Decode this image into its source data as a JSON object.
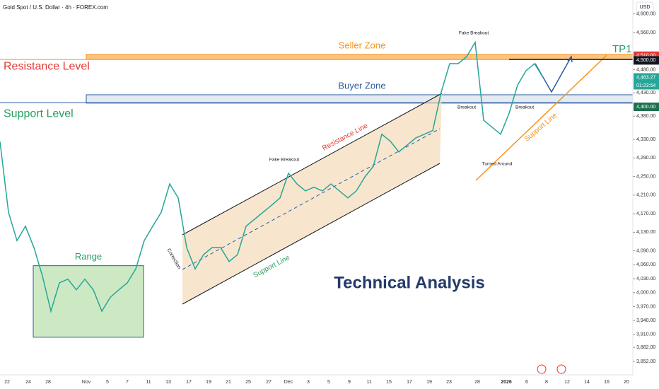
{
  "header": {
    "symbol": "Gold Spot / U.S. Dollar · 4h · FOREX.com",
    "currency": "USD"
  },
  "chart_data": {
    "type": "line",
    "series": [
      {
        "color": "#26a69a",
        "values": [
          4325,
          4173,
          4112,
          4143,
          4097,
          4036,
          3960,
          4021,
          4029,
          4006,
          4029,
          4006,
          3960,
          3990,
          4006,
          4021,
          4051,
          4112,
          4143,
          4173,
          4234,
          4204,
          4097,
          4051,
          4082,
          4097,
          4097,
          4067,
          4082,
          4143,
          4158,
          4173,
          4188,
          4204,
          4257,
          4234,
          4219,
          4227,
          4219,
          4234,
          4219,
          4204,
          4219,
          4249,
          4272,
          4341,
          4326,
          4303,
          4318,
          4333,
          4341,
          4349,
          4432,
          4493,
          4493,
          4508,
          4539,
          4371,
          4356,
          4341,
          4386,
          4447,
          4478,
          4493,
          4463
        ]
      }
    ],
    "ylim": [
      3823,
      4630
    ],
    "yticks": [
      {
        "value": 4600,
        "label": "4,600.00"
      },
      {
        "value": 4560,
        "label": "4,560.00"
      },
      {
        "value": 4480,
        "label": "4,480.00"
      },
      {
        "value": 4430,
        "label": "4,430.00"
      },
      {
        "value": 4380,
        "label": "4,380.00"
      },
      {
        "value": 4330,
        "label": "4,330.00"
      },
      {
        "value": 4290,
        "label": "4,290.00"
      },
      {
        "value": 4250,
        "label": "4,250.00"
      },
      {
        "value": 4210,
        "label": "4,210.00"
      },
      {
        "value": 4170,
        "label": "4,170.00"
      },
      {
        "value": 4130,
        "label": "4,130.00"
      },
      {
        "value": 4090,
        "label": "4,090.00"
      },
      {
        "value": 4060,
        "label": "4,060.00"
      },
      {
        "value": 4030,
        "label": "4,030.00"
      },
      {
        "value": 4000,
        "label": "4,000.00"
      },
      {
        "value": 3970,
        "label": "3,970.00"
      },
      {
        "value": 3940,
        "label": "3,940.00"
      },
      {
        "value": 3910,
        "label": "3,910.00"
      },
      {
        "value": 3882,
        "label": "3,882.00"
      },
      {
        "value": 3852,
        "label": "3,852.00"
      }
    ],
    "grid": false,
    "xtick_labels": [
      "22",
      "24",
      "28",
      "Nov",
      "5",
      "7",
      "11",
      "13",
      "17",
      "19",
      "21",
      "25",
      "27",
      "Dec",
      "3",
      "5",
      "9",
      "11",
      "15",
      "17",
      "19",
      "23",
      "28",
      "2026",
      "6",
      "8",
      "12",
      "14",
      "16",
      "20"
    ],
    "price_badges": [
      {
        "value": 4510,
        "label": "4,510.00",
        "color": "#e53935"
      },
      {
        "value": 4500,
        "label": "4,500.00",
        "color": "#131722"
      },
      {
        "value": 4463.27,
        "label": "4,463.27",
        "color": "#26a69a"
      },
      {
        "value": 4400,
        "label": "4,400.00",
        "color": "#1e6f4f"
      }
    ],
    "countdown": "01:23:54",
    "zones": [
      {
        "label": "Seller Zone",
        "range": [
          4502,
          4513
        ],
        "color": "#f7931a"
      },
      {
        "label": "Buyer Zone",
        "range": [
          4408,
          4426
        ],
        "color": "#2c5aa0"
      }
    ],
    "levels": [
      {
        "label": "Resistance Level",
        "value": 4502,
        "color": "#e53935"
      },
      {
        "label": "Support Level",
        "value": 4409,
        "color": "#27a060"
      }
    ],
    "range_box": {
      "label": "Range",
      "range": [
        3904,
        4058
      ]
    },
    "annotations": {
      "tp": "TP1",
      "correction": "Correction",
      "channel_support": "Support Line",
      "channel_resistance": "Resistance Line",
      "fake_breakout_1": "Fake Breakout",
      "fake_breakout_2": "Fake Breakout",
      "breakout_1": "Breakout",
      "breakout_2": "Breakout",
      "turned_around": "Turned Around",
      "trend_support": "Support Line",
      "title": "Technical Analysis"
    }
  }
}
